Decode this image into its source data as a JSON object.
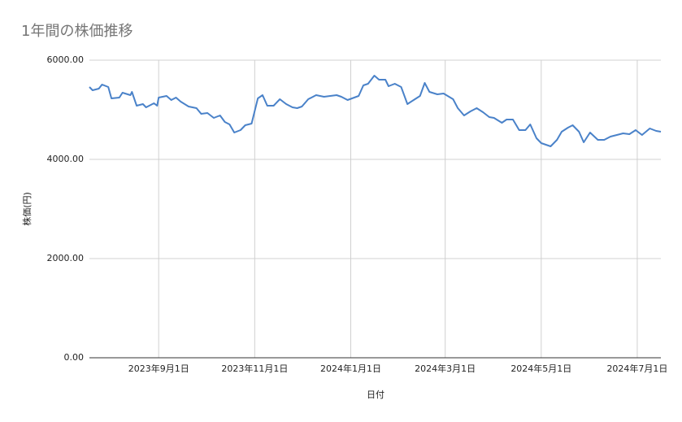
{
  "chart_data": {
    "type": "line",
    "title": "1年間の株価推移",
    "x_label": "日付",
    "y_label": "株価(円)",
    "x": [
      "2023-07-19",
      "2023-07-21",
      "2023-07-25",
      "2023-07-27",
      "2023-07-31",
      "2023-08-02",
      "2023-08-07",
      "2023-08-09",
      "2023-08-14",
      "2023-08-15",
      "2023-08-18",
      "2023-08-22",
      "2023-08-24",
      "2023-08-29",
      "2023-08-31",
      "2023-09-01",
      "2023-09-06",
      "2023-09-09",
      "2023-09-12",
      "2023-09-15",
      "2023-09-20",
      "2023-09-25",
      "2023-09-28",
      "2023-10-02",
      "2023-10-06",
      "2023-10-10",
      "2023-10-13",
      "2023-10-16",
      "2023-10-19",
      "2023-10-23",
      "2023-10-26",
      "2023-10-30",
      "2023-11-03",
      "2023-11-06",
      "2023-11-09",
      "2023-11-13",
      "2023-11-17",
      "2023-11-21",
      "2023-11-25",
      "2023-11-28",
      "2023-12-01",
      "2023-12-05",
      "2023-12-10",
      "2023-12-15",
      "2023-12-19",
      "2023-12-23",
      "2023-12-26",
      "2023-12-30",
      "2024-01-06",
      "2024-01-09",
      "2024-01-12",
      "2024-01-16",
      "2024-01-19",
      "2024-01-23",
      "2024-01-25",
      "2024-01-29",
      "2024-02-02",
      "2024-02-06",
      "2024-02-10",
      "2024-02-14",
      "2024-02-17",
      "2024-02-20",
      "2024-02-25",
      "2024-02-29",
      "2024-03-06",
      "2024-03-09",
      "2024-03-13",
      "2024-03-17",
      "2024-03-21",
      "2024-03-25",
      "2024-03-29",
      "2024-04-01",
      "2024-04-06",
      "2024-04-09",
      "2024-04-13",
      "2024-04-17",
      "2024-04-21",
      "2024-04-24",
      "2024-04-28",
      "2024-05-01",
      "2024-05-07",
      "2024-05-11",
      "2024-05-14",
      "2024-05-18",
      "2024-05-21",
      "2024-05-25",
      "2024-05-28",
      "2024-06-01",
      "2024-06-06",
      "2024-06-10",
      "2024-06-14",
      "2024-06-18",
      "2024-06-22",
      "2024-06-26",
      "2024-06-30",
      "2024-07-04",
      "2024-07-09",
      "2024-07-13",
      "2024-07-16"
    ],
    "series": [
      {
        "name": "株価(円)",
        "color": "#4a82c9",
        "values": [
          5459,
          5393,
          5426,
          5508,
          5459,
          5230,
          5246,
          5344,
          5295,
          5361,
          5082,
          5115,
          5049,
          5131,
          5082,
          5246,
          5279,
          5197,
          5246,
          5164,
          5066,
          5033,
          4918,
          4934,
          4836,
          4885,
          4754,
          4705,
          4541,
          4590,
          4689,
          4721,
          5230,
          5295,
          5082,
          5082,
          5213,
          5115,
          5049,
          5033,
          5066,
          5213,
          5295,
          5262,
          5279,
          5295,
          5262,
          5197,
          5279,
          5492,
          5525,
          5689,
          5607,
          5607,
          5475,
          5525,
          5459,
          5115,
          5197,
          5279,
          5541,
          5361,
          5311,
          5328,
          5213,
          5033,
          4885,
          4967,
          5033,
          4951,
          4852,
          4836,
          4738,
          4803,
          4803,
          4590,
          4590,
          4705,
          4426,
          4328,
          4262,
          4393,
          4557,
          4639,
          4689,
          4557,
          4344,
          4541,
          4393,
          4393,
          4459,
          4492,
          4525,
          4508,
          4590,
          4492,
          4623,
          4574,
          4557
        ]
      }
    ],
    "xlim": [
      "2023-07-19",
      "2024-07-16"
    ],
    "xticks": [
      {
        "value": "2023-09-01",
        "label": "2023年9月1日"
      },
      {
        "value": "2023-11-01",
        "label": "2023年11月1日"
      },
      {
        "value": "2024-01-01",
        "label": "2024年1月1日"
      },
      {
        "value": "2024-03-01",
        "label": "2024年3月1日"
      },
      {
        "value": "2024-05-01",
        "label": "2024年5月1日"
      },
      {
        "value": "2024-07-01",
        "label": "2024年7月1日"
      }
    ],
    "ylim": [
      0,
      6000
    ],
    "yticks": [
      {
        "value": 0,
        "label": "0.00"
      },
      {
        "value": 2000,
        "label": "2000.00"
      },
      {
        "value": 4000,
        "label": "4000.00"
      },
      {
        "value": 6000,
        "label": "6000.00"
      }
    ],
    "grid": true
  }
}
